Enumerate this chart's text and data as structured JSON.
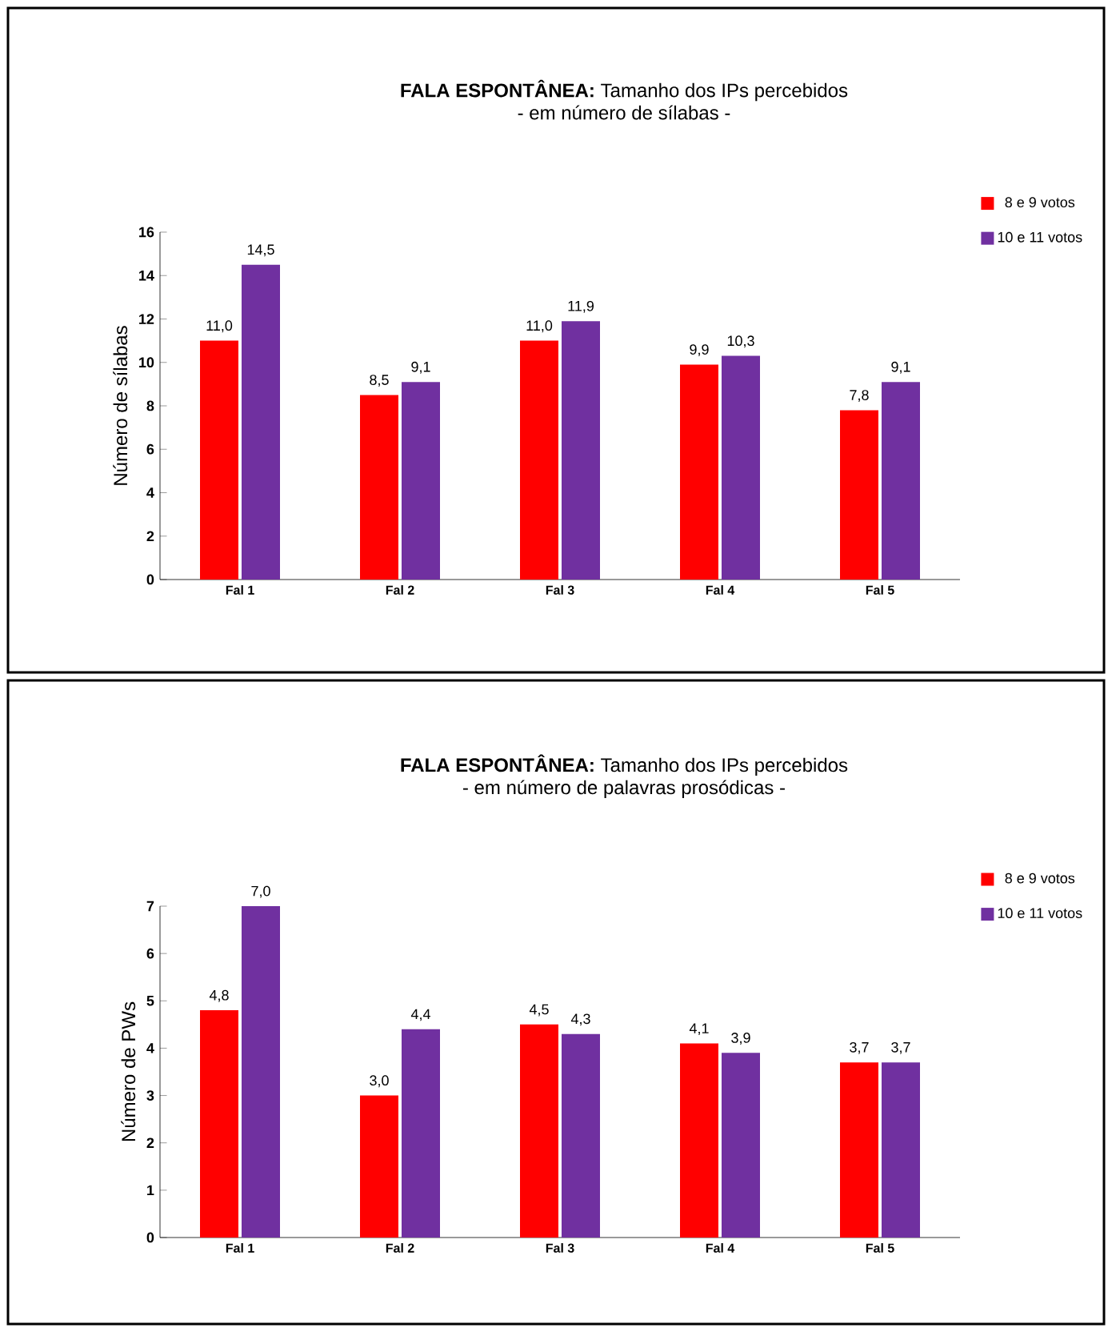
{
  "chart_data": [
    {
      "type": "bar",
      "title": "**FALA ESPONTÂNEA:** Tamanho dos IPs percebidos",
      "subtitle": "- em número de sílabas -",
      "ylabel": "Número de sílabas",
      "categories": [
        "Fal 1",
        "Fal 2",
        "Fal 3",
        "Fal 4",
        "Fal 5"
      ],
      "series": [
        {
          "name": "8 e 9 votos",
          "color": "#ff0000",
          "values": [
            11.0,
            8.5,
            11.0,
            9.9,
            7.8
          ],
          "value_labels": [
            "11,0",
            "8,5",
            "11,0",
            "9,9",
            "7,8"
          ]
        },
        {
          "name": "10 e 11 votos",
          "color": "#7030a0",
          "values": [
            14.5,
            9.1,
            11.9,
            10.3,
            9.1
          ],
          "value_labels": [
            "14,5",
            "9,1",
            "11,9",
            "10,3",
            "9,1"
          ]
        }
      ],
      "ylim": [
        0,
        16
      ],
      "yticks": [
        0,
        2,
        4,
        6,
        8,
        10,
        12,
        14,
        16
      ],
      "legend": "top right"
    },
    {
      "type": "bar",
      "title": "**FALA ESPONTÂNEA:** Tamanho dos IPs percebidos",
      "subtitle": "- em número de palavras prosódicas -",
      "ylabel": "Número de PWs",
      "categories": [
        "Fal 1",
        "Fal 2",
        "Fal 3",
        "Fal 4",
        "Fal 5"
      ],
      "series": [
        {
          "name": "8 e 9 votos",
          "color": "#ff0000",
          "values": [
            4.8,
            3.0,
            4.5,
            4.1,
            3.7
          ],
          "value_labels": [
            "4,8",
            "3,0",
            "4,5",
            "4,1",
            "3,7"
          ]
        },
        {
          "name": "10 e 11 votos",
          "color": "#7030a0",
          "values": [
            7.0,
            4.4,
            4.3,
            3.9,
            3.7
          ],
          "value_labels": [
            "7,0",
            "4,4",
            "4,3",
            "3,9",
            "3,7"
          ]
        }
      ],
      "ylim": [
        0,
        7
      ],
      "yticks": [
        0,
        1,
        2,
        3,
        4,
        5,
        6,
        7
      ],
      "legend": "top right"
    }
  ]
}
